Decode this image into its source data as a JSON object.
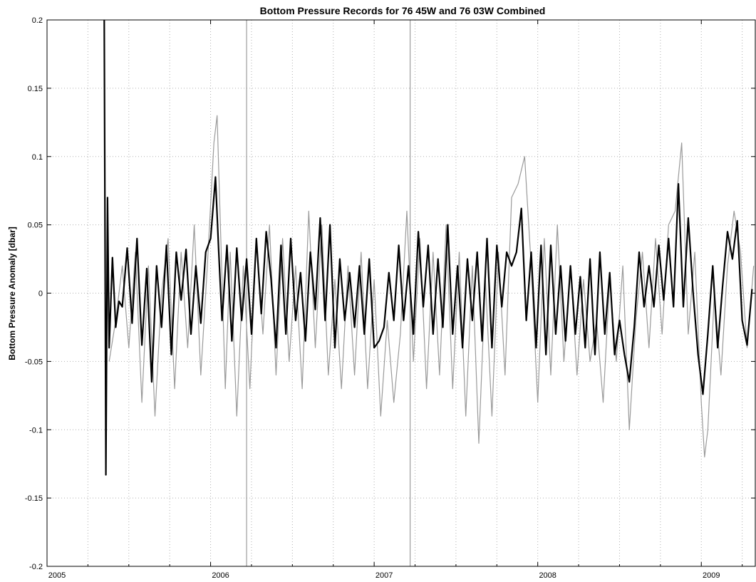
{
  "chart_data": {
    "type": "line",
    "title": "Bottom Pressure Records for 76 45W and 76 03W Combined",
    "xlabel": "",
    "ylabel": "Bottom Pressure Anomaly [dbar]",
    "xlim": [
      2005.0,
      2009.33
    ],
    "ylim": [
      -0.2,
      0.2
    ],
    "x_ticks": [
      "2005",
      "2006",
      "2007",
      "2008",
      "2009"
    ],
    "y_ticks": [
      "-0.2",
      "-0.15",
      "-0.1",
      "-0.05",
      "0",
      "0.05",
      "0.1",
      "0.15",
      "0.2"
    ],
    "grid": true,
    "colors": {
      "raw": "#9a9a9a",
      "filtered": "#000000",
      "grid": "#b0b0b0"
    },
    "vertical_markers": [
      2006.22,
      2007.22
    ],
    "series": [
      {
        "role": "raw",
        "x": [
          2005.38,
          2005.42,
          2005.46,
          2005.5,
          2005.54,
          2005.58,
          2005.62,
          2005.66,
          2005.7,
          2005.74,
          2005.78,
          2005.82,
          2005.86,
          2005.9,
          2005.94,
          2005.98,
          2006.02,
          2006.04,
          2006.06,
          2006.09,
          2006.12,
          2006.16,
          2006.2,
          2006.24,
          2006.28,
          2006.32,
          2006.36,
          2006.4,
          2006.44,
          2006.48,
          2006.52,
          2006.56,
          2006.6,
          2006.64,
          2006.68,
          2006.72,
          2006.76,
          2006.8,
          2006.84,
          2006.88,
          2006.92,
          2006.96,
          2007.0,
          2007.04,
          2007.08,
          2007.12,
          2007.16,
          2007.2,
          2007.24,
          2007.28,
          2007.32,
          2007.36,
          2007.4,
          2007.44,
          2007.48,
          2007.52,
          2007.56,
          2007.6,
          2007.64,
          2007.68,
          2007.72,
          2007.76,
          2007.8,
          2007.84,
          2007.88,
          2007.92,
          2007.96,
          2008.0,
          2008.04,
          2008.08,
          2008.12,
          2008.16,
          2008.2,
          2008.24,
          2008.28,
          2008.32,
          2008.36,
          2008.4,
          2008.44,
          2008.48,
          2008.52,
          2008.56,
          2008.6,
          2008.64,
          2008.68,
          2008.72,
          2008.76,
          2008.8,
          2008.84,
          2008.88,
          2008.92,
          2008.96,
          2009.0,
          2009.02,
          2009.04,
          2009.08,
          2009.12,
          2009.16,
          2009.2,
          2009.24,
          2009.28,
          2009.32
        ],
        "y": [
          -0.05,
          -0.02,
          0.02,
          -0.04,
          0.03,
          -0.08,
          0.02,
          -0.09,
          0.0,
          0.04,
          -0.07,
          0.03,
          -0.04,
          0.05,
          -0.06,
          0.02,
          0.11,
          0.13,
          0.05,
          -0.07,
          0.03,
          -0.09,
          0.02,
          -0.07,
          0.04,
          -0.03,
          0.05,
          -0.06,
          0.04,
          -0.05,
          0.02,
          -0.07,
          0.06,
          -0.04,
          0.05,
          -0.06,
          0.01,
          -0.07,
          0.02,
          -0.06,
          0.03,
          -0.07,
          0.01,
          -0.09,
          -0.02,
          -0.08,
          -0.03,
          0.06,
          -0.05,
          0.04,
          -0.07,
          0.03,
          -0.06,
          0.05,
          -0.07,
          0.03,
          -0.09,
          0.02,
          -0.11,
          0.01,
          -0.09,
          0.03,
          -0.06,
          0.07,
          0.08,
          0.1,
          0.02,
          -0.08,
          0.04,
          -0.06,
          0.05,
          -0.05,
          0.02,
          -0.06,
          0.01,
          -0.05,
          -0.02,
          -0.08,
          0.01,
          -0.05,
          0.02,
          -0.1,
          -0.02,
          0.03,
          -0.04,
          0.04,
          -0.03,
          0.05,
          0.06,
          0.11,
          -0.03,
          0.03,
          -0.08,
          -0.12,
          -0.1,
          0.0,
          -0.06,
          0.02,
          0.06,
          0.03,
          -0.04,
          0.02
        ]
      },
      {
        "role": "filtered",
        "x": [
          2005.35,
          2005.36,
          2005.37,
          2005.38,
          2005.4,
          2005.42,
          2005.44,
          2005.46,
          2005.49,
          2005.52,
          2005.55,
          2005.58,
          2005.61,
          2005.64,
          2005.67,
          2005.7,
          2005.73,
          2005.76,
          2005.79,
          2005.82,
          2005.85,
          2005.88,
          2005.91,
          2005.94,
          2005.97,
          2006.0,
          2006.03,
          2006.05,
          2006.07,
          2006.1,
          2006.13,
          2006.16,
          2006.19,
          2006.22,
          2006.25,
          2006.28,
          2006.31,
          2006.34,
          2006.37,
          2006.4,
          2006.43,
          2006.46,
          2006.49,
          2006.52,
          2006.55,
          2006.58,
          2006.61,
          2006.64,
          2006.67,
          2006.7,
          2006.73,
          2006.76,
          2006.79,
          2006.82,
          2006.85,
          2006.88,
          2006.91,
          2006.94,
          2006.97,
          2007.0,
          2007.03,
          2007.06,
          2007.09,
          2007.12,
          2007.15,
          2007.18,
          2007.21,
          2007.24,
          2007.27,
          2007.3,
          2007.33,
          2007.36,
          2007.39,
          2007.42,
          2007.45,
          2007.48,
          2007.51,
          2007.54,
          2007.57,
          2007.6,
          2007.63,
          2007.66,
          2007.69,
          2007.72,
          2007.75,
          2007.78,
          2007.81,
          2007.84,
          2007.87,
          2007.9,
          2007.93,
          2007.96,
          2007.99,
          2008.02,
          2008.05,
          2008.08,
          2008.11,
          2008.14,
          2008.17,
          2008.2,
          2008.23,
          2008.26,
          2008.29,
          2008.32,
          2008.35,
          2008.38,
          2008.41,
          2008.44,
          2008.47,
          2008.5,
          2008.53,
          2008.56,
          2008.59,
          2008.62,
          2008.65,
          2008.68,
          2008.71,
          2008.74,
          2008.77,
          2008.8,
          2008.83,
          2008.86,
          2008.89,
          2008.92,
          2008.95,
          2008.98,
          2009.01,
          2009.04,
          2009.07,
          2009.1,
          2009.13,
          2009.16,
          2009.19,
          2009.22,
          2009.25,
          2009.28,
          2009.31
        ],
        "y": [
          0.2,
          -0.133,
          0.07,
          -0.04,
          0.026,
          -0.025,
          -0.006,
          -0.01,
          0.033,
          -0.022,
          0.04,
          -0.038,
          0.018,
          -0.065,
          0.02,
          -0.025,
          0.035,
          -0.045,
          0.03,
          -0.005,
          0.032,
          -0.03,
          0.02,
          -0.022,
          0.03,
          0.04,
          0.085,
          0.03,
          -0.02,
          0.035,
          -0.035,
          0.033,
          -0.02,
          0.025,
          -0.03,
          0.04,
          -0.015,
          0.045,
          0.01,
          -0.04,
          0.035,
          -0.03,
          0.04,
          -0.02,
          0.015,
          -0.035,
          0.03,
          -0.012,
          0.055,
          -0.02,
          0.05,
          -0.04,
          0.025,
          -0.02,
          0.015,
          -0.025,
          0.02,
          -0.03,
          0.025,
          -0.04,
          -0.035,
          -0.025,
          0.015,
          -0.02,
          0.035,
          -0.02,
          0.02,
          -0.03,
          0.045,
          -0.01,
          0.035,
          -0.03,
          0.025,
          -0.025,
          0.05,
          -0.03,
          0.02,
          -0.04,
          0.025,
          -0.02,
          0.03,
          -0.035,
          0.04,
          -0.04,
          0.035,
          -0.01,
          0.03,
          0.02,
          0.03,
          0.062,
          -0.02,
          0.03,
          -0.04,
          0.035,
          -0.045,
          0.035,
          -0.03,
          0.02,
          -0.035,
          0.02,
          -0.03,
          0.012,
          -0.04,
          0.025,
          -0.045,
          0.03,
          -0.03,
          0.015,
          -0.045,
          -0.02,
          -0.045,
          -0.065,
          -0.025,
          0.03,
          -0.01,
          0.02,
          -0.01,
          0.035,
          -0.005,
          0.04,
          -0.01,
          0.08,
          -0.01,
          0.055,
          0.0,
          -0.045,
          -0.074,
          -0.03,
          0.02,
          -0.04,
          0.005,
          0.045,
          0.025,
          0.053,
          -0.02,
          -0.038,
          0.003
        ]
      }
    ]
  }
}
